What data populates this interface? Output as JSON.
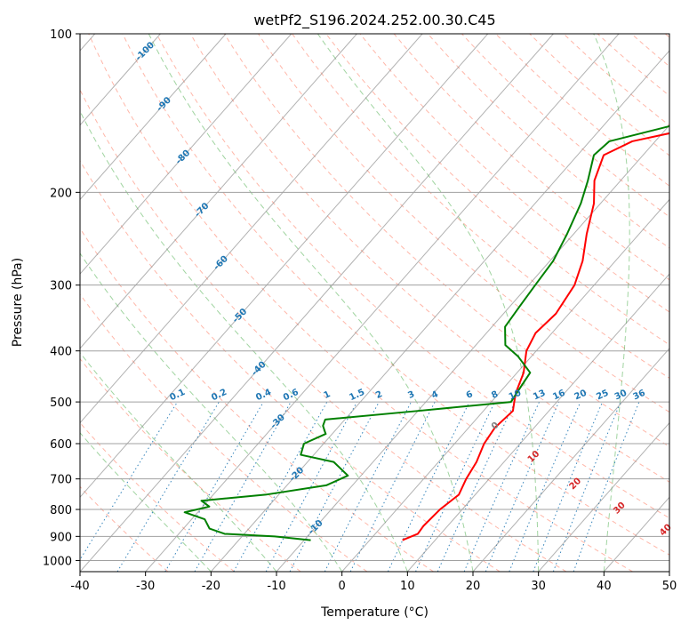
{
  "chart_data": {
    "type": "skew-t",
    "title": "wetPf2_S196.2024.252.00.30.C45",
    "xlabel": "Temperature (°C)",
    "ylabel": "Pressure (hPa)",
    "xlim": [
      -40,
      50
    ],
    "ylim": [
      1050,
      100
    ],
    "x_ticks": [
      -40,
      -30,
      -20,
      -10,
      0,
      10,
      20,
      30,
      40,
      50
    ],
    "y_ticks": [
      100,
      200,
      300,
      400,
      500,
      600,
      700,
      800,
      900,
      1000
    ],
    "y_scale": "log",
    "grid": true,
    "colors": {
      "temperature": "#ff0000",
      "dewpoint": "#008000",
      "dry_adiabat": "#ff6040",
      "moist_adiabat": "#2ca02c",
      "mixing_ratio": "#1f77b4",
      "isotherm": "#7f7f7f",
      "isotherm_label": "#1f77b4",
      "hzero_label": "#d62728"
    },
    "series": [
      {
        "name": "Temperature",
        "points": [
          {
            "p": 915,
            "t": 5.0
          },
          {
            "p": 890,
            "t": 6.5
          },
          {
            "p": 860,
            "t": 6.3
          },
          {
            "p": 800,
            "t": 6.6
          },
          {
            "p": 750,
            "t": 7.5
          },
          {
            "p": 700,
            "t": 6.5
          },
          {
            "p": 650,
            "t": 5.8
          },
          {
            "p": 600,
            "t": 4.5
          },
          {
            "p": 560,
            "t": 4.0
          },
          {
            "p": 520,
            "t": 4.5
          },
          {
            "p": 500,
            "t": 3.5
          },
          {
            "p": 480,
            "t": 2.5
          },
          {
            "p": 440,
            "t": 1.0
          },
          {
            "p": 400,
            "t": -1.5
          },
          {
            "p": 370,
            "t": -2.5
          },
          {
            "p": 340,
            "t": -2.0
          },
          {
            "p": 300,
            "t": -3.0
          },
          {
            "p": 270,
            "t": -5.0
          },
          {
            "p": 240,
            "t": -8.0
          },
          {
            "p": 210,
            "t": -11.0
          },
          {
            "p": 190,
            "t": -14.0
          },
          {
            "p": 170,
            "t": -16.0
          },
          {
            "p": 160,
            "t": -13.5
          },
          {
            "p": 150,
            "t": -5.0
          },
          {
            "p": 140,
            "t": -2.5
          },
          {
            "p": 125,
            "t": -4.0
          },
          {
            "p": 110,
            "t": -6.0
          },
          {
            "p": 100,
            "t": -10.0
          }
        ]
      },
      {
        "name": "Dewpoint",
        "points": [
          {
            "p": 915,
            "t": -9.0
          },
          {
            "p": 900,
            "t": -15.0
          },
          {
            "p": 890,
            "t": -23.0
          },
          {
            "p": 870,
            "t": -26.0
          },
          {
            "p": 835,
            "t": -28.0
          },
          {
            "p": 810,
            "t": -32.0
          },
          {
            "p": 790,
            "t": -29.0
          },
          {
            "p": 770,
            "t": -31.0
          },
          {
            "p": 750,
            "t": -22.0
          },
          {
            "p": 720,
            "t": -14.0
          },
          {
            "p": 690,
            "t": -12.0
          },
          {
            "p": 650,
            "t": -16.0
          },
          {
            "p": 630,
            "t": -22.0
          },
          {
            "p": 600,
            "t": -23.0
          },
          {
            "p": 575,
            "t": -21.0
          },
          {
            "p": 555,
            "t": -22.5
          },
          {
            "p": 540,
            "t": -23.0
          },
          {
            "p": 520,
            "t": -10.0
          },
          {
            "p": 500,
            "t": 3.0
          },
          {
            "p": 470,
            "t": 2.5
          },
          {
            "p": 440,
            "t": 2.0
          },
          {
            "p": 410,
            "t": -2.0
          },
          {
            "p": 390,
            "t": -5.5
          },
          {
            "p": 360,
            "t": -8.0
          },
          {
            "p": 330,
            "t": -8.5
          },
          {
            "p": 300,
            "t": -9.0
          },
          {
            "p": 270,
            "t": -9.5
          },
          {
            "p": 240,
            "t": -11.0
          },
          {
            "p": 210,
            "t": -13.0
          },
          {
            "p": 190,
            "t": -15.0
          },
          {
            "p": 170,
            "t": -17.5
          },
          {
            "p": 160,
            "t": -17.0
          },
          {
            "p": 150,
            "t": -10.0
          },
          {
            "p": 140,
            "t": -6.5
          },
          {
            "p": 130,
            "t": -7.0
          },
          {
            "p": 120,
            "t": -8.0
          },
          {
            "p": 110,
            "t": -8.0
          },
          {
            "p": 100,
            "t": -12.0
          }
        ]
      }
    ],
    "isotherm_labels": [
      "-100",
      "-90",
      "-80",
      "-70",
      "-60",
      "-50",
      "-40",
      "-30",
      "-20",
      "-10"
    ],
    "isotherm_label_values": [
      -100,
      -90,
      -80,
      -70,
      -60,
      -50,
      -40,
      -30,
      -20,
      -10
    ],
    "hzero_labels": [
      {
        "label": "0",
        "t": 0
      },
      {
        "label": "10",
        "t": 10
      },
      {
        "label": "20",
        "t": 20
      },
      {
        "label": "30",
        "t": 30
      },
      {
        "label": "40",
        "t": 40
      }
    ],
    "mixing_ratio_labels": [
      "0.1",
      "0.2",
      "0.4",
      "0.6",
      "1",
      "1.5",
      "2",
      "3",
      "4",
      "6",
      "8",
      "10",
      "13",
      "16",
      "20",
      "25",
      "30",
      "36"
    ],
    "mixing_ratio_values": [
      0.1,
      0.2,
      0.4,
      0.6,
      1,
      1.5,
      2,
      3,
      4,
      6,
      8,
      10,
      13,
      16,
      20,
      25,
      30,
      36
    ]
  }
}
